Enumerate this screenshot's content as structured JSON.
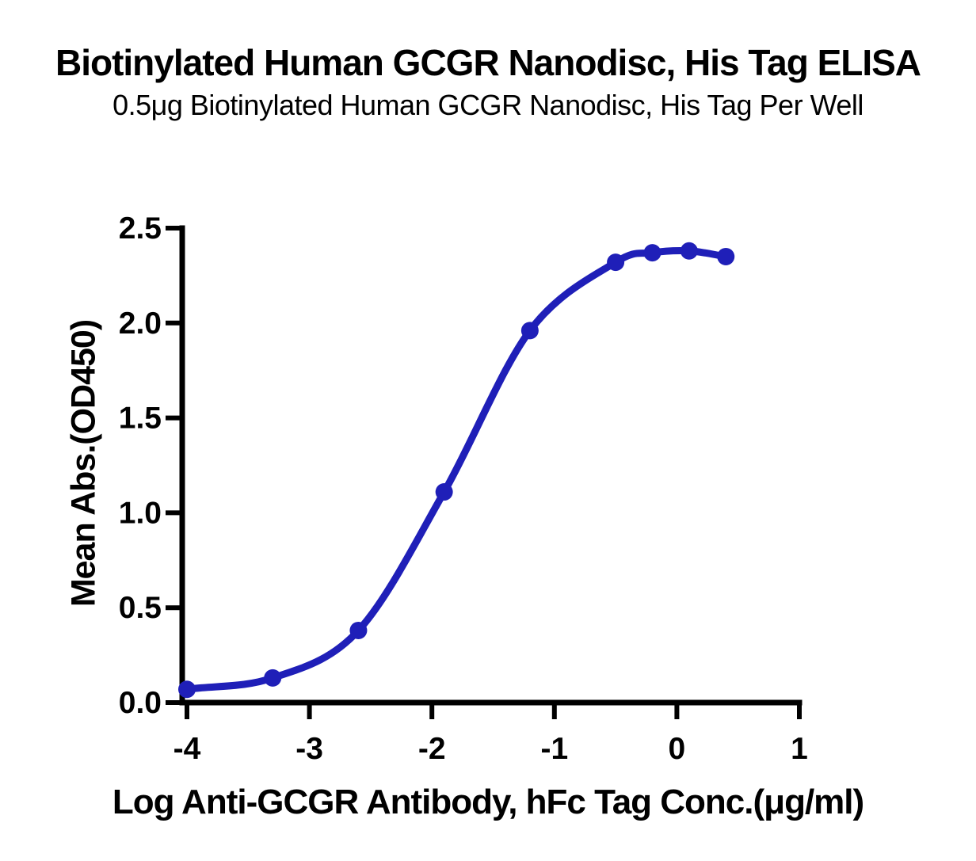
{
  "header": {
    "title": "Biotinylated Human GCGR Nanodisc, His Tag ELISA",
    "subtitle": "0.5μg Biotinylated Human GCGR Nanodisc, His Tag Per Well"
  },
  "chart_data": {
    "type": "line",
    "title": "Biotinylated Human GCGR Nanodisc, His Tag ELISA",
    "subtitle": "0.5μg Biotinylated Human GCGR Nanodisc, His Tag Per Well",
    "xlabel": "Log Anti-GCGR Antibody, hFc Tag Conc.(μg/ml)",
    "ylabel": "Mean Abs.(OD450)",
    "x": [
      -4,
      -3.3,
      -2.6,
      -1.9,
      -1.2,
      -0.5,
      -0.2,
      0.1,
      0.4
    ],
    "y": [
      0.07,
      0.13,
      0.38,
      1.11,
      1.96,
      2.32,
      2.37,
      2.38,
      2.35
    ],
    "series_name": "Anti-GCGR Antibody, hFc Tag",
    "xlim": [
      -4,
      1
    ],
    "ylim": [
      0,
      2.5
    ],
    "x_ticks": [
      -4,
      -3,
      -2,
      -1,
      0,
      1
    ],
    "x_tick_labels": [
      "-4",
      "-3",
      "-2",
      "-1",
      "0",
      "1"
    ],
    "y_ticks": [
      0,
      0.5,
      1,
      1.5,
      2,
      2.5
    ],
    "y_tick_labels": [
      "0.0",
      "0.5",
      "1.0",
      "1.5",
      "2.0",
      "2.5"
    ],
    "grid": false,
    "legend": null,
    "colors": {
      "series": "#1f1fb8",
      "axis": "#000000",
      "background": "#ffffff"
    }
  }
}
